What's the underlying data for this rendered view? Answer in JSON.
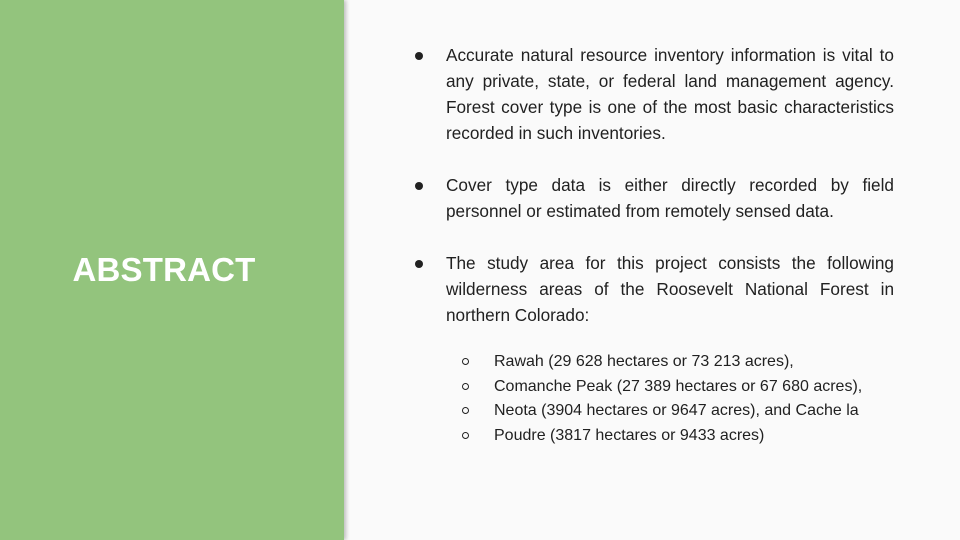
{
  "slide": {
    "title": "ABSTRACT",
    "bullets": [
      "Accurate natural resource inventory information is vital to any private, state, or federal land management agency. Forest cover type is one of the most basic characteristics recorded in such inventories.",
      "Cover type data is either directly recorded by field personnel or estimated from remotely sensed data.",
      "The study area for this project consists  the following wilderness areas of the Roosevelt National Forest in northern Colorado:"
    ],
    "sub_bullets": [
      "Rawah  (29 628 hectares or 73 213 acres),",
      "Comanche  Peak (27 389 hectares or 67 680 acres),",
      "Neota (3904 hectares or 9647 acres), and Cache  la",
      "Poudre (3817 hectares or 9433 acres)"
    ]
  },
  "colors": {
    "panel": "#93c47d",
    "background": "#fafafa",
    "title": "#ffffff",
    "text": "#212121"
  }
}
